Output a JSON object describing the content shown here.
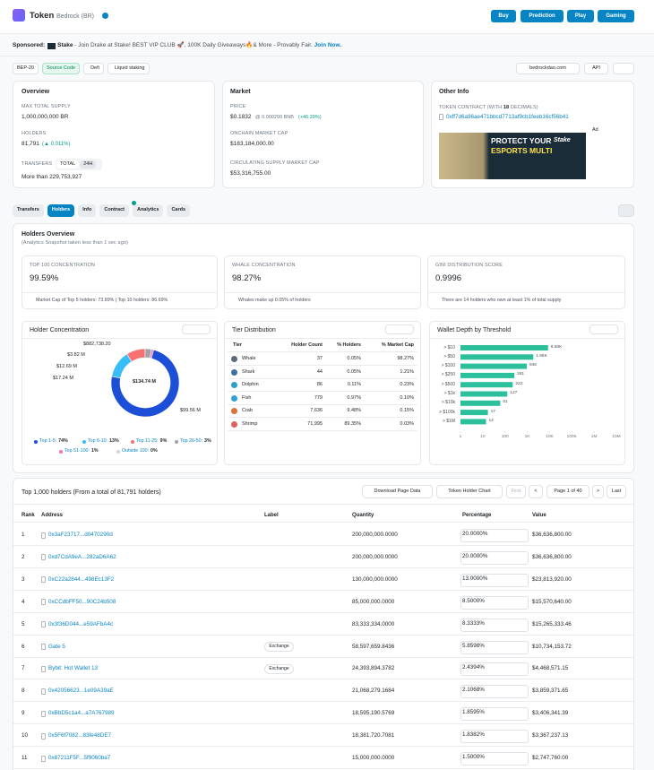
{
  "header": {
    "title": "Token",
    "token_name": "Bedrock (BR)",
    "buttons": [
      "Buy",
      "Prediction",
      "Play",
      "Gaming"
    ]
  },
  "sponsor": {
    "label": "Sponsored:",
    "brand": "Stake",
    "text": " - Join Drake at Stake! BEST VIP CLUB 🚀, 100K Daily Giveaways🔥& More - Provably Fair. ",
    "link": "Join Now."
  },
  "tags": [
    "BEP-20",
    "Source Code",
    "Defi",
    "Liquid staking"
  ],
  "links": {
    "site": "bedrockdao.com",
    "api": "API"
  },
  "overview": {
    "title": "Overview",
    "supply_label": "MAX TOTAL SUPPLY",
    "supply": "1,000,000,000 BR",
    "holders_label": "HOLDERS",
    "holders": "81,791",
    "holders_change": "(▲ 0.011%)",
    "transfers_label": "TRANSFERS",
    "transfer_tabs": [
      "TOTAL",
      "24H"
    ],
    "transfers": "More than 229,753,927"
  },
  "market": {
    "title": "Market",
    "price_label": "PRICE",
    "price": "$0.1832",
    "price_bnb": "@ 0.000299 BNB",
    "price_change": "(+46.20%)",
    "mcap_label": "ONCHAIN MARKET CAP",
    "mcap": "$183,184,000.00",
    "circ_label": "CIRCULATING SUPPLY MARKET CAP",
    "circ": "$53,316,755.00"
  },
  "other_info": {
    "title": "Other Info",
    "contract_label": "TOKEN CONTRACT (WITH ",
    "decimals": "18",
    "contract_label_end": " DECIMALS)",
    "contract": "0xff7d6a96ae471bbcd7713af9cb1feeb16cf56b41",
    "ad_label": "Ad",
    "ad_lines": [
      "PROTECT YOUR",
      "ESPORTS MULTI"
    ],
    "ad_brand": "Stake"
  },
  "tabs": [
    "Transfers",
    "Holders",
    "Info",
    "Contract",
    "Analytics",
    "Cards"
  ],
  "holders_overview": {
    "title": "Holders Overview",
    "subtitle": "(Analytics Snapshot taken less than 1 sec ago)",
    "stats": [
      {
        "label": "TOP 100 CONCENTRATION",
        "value": "99.59%",
        "note": "Market Cap of Top 5 holders: 73.89% | Top 10 holders: 86.69%"
      },
      {
        "label": "WHALE CONCENTRATION",
        "value": "98.27%",
        "note": "Whales make up 0.05% of holders"
      },
      {
        "label": "GINI DISTRIBUTION SCORE",
        "value": "0.9996",
        "note": "There are 14 holders who own at least 1% of total supply"
      }
    ]
  },
  "concentration": {
    "type": "pie",
    "title": "Holder Concentration",
    "callouts": [
      "$882,738.20",
      "$3.82 M",
      "$12.69 M",
      "$17.24 M",
      "$134.74 M",
      "$99.56 M"
    ],
    "series": [
      {
        "name": "Top 1-5:",
        "value": 74,
        "value_label": "74%",
        "color": "#1d4ed8"
      },
      {
        "name": "Top 6-10:",
        "value": 13,
        "value_label": "13%",
        "color": "#38bdf8"
      },
      {
        "name": "Top 11-25:",
        "value": 9,
        "value_label": "9%",
        "color": "#f87171"
      },
      {
        "name": "Top 26-50:",
        "value": 3,
        "value_label": "3%",
        "color": "#a1a1aa"
      },
      {
        "name": "Top 51-100:",
        "value": 1,
        "value_label": "1%",
        "color": "#f472b6"
      },
      {
        "name": "Outside 100:",
        "value": 0,
        "value_label": "0%",
        "color": "#d4d4d8"
      }
    ]
  },
  "tiers": {
    "title": "Tier Distribution",
    "columns": [
      "Tier",
      "Holder Count",
      "% Holders",
      "% Market Cap"
    ],
    "rows": [
      [
        "Whale",
        "37",
        "0.05%",
        "98.27%"
      ],
      [
        "Shark",
        "44",
        "0.05%",
        "1.21%"
      ],
      [
        "Dolphin",
        "86",
        "0.11%",
        "0.23%"
      ],
      [
        "Fish",
        "779",
        "0.97%",
        "0.10%"
      ],
      [
        "Crab",
        "7,636",
        "9.48%",
        "0.15%"
      ],
      [
        "Shrimp",
        "71,995",
        "89.35%",
        "0.03%"
      ]
    ]
  },
  "wallet_depth": {
    "type": "bar",
    "title": "Wallet Depth by Threshold",
    "categories": [
      "> $10",
      "> $50",
      "> $100",
      "> $250",
      "> $500",
      "> $1k",
      "> $10k",
      "> $100k",
      "> $1M"
    ],
    "values": [
      8580,
      1860,
      946,
      261,
      222,
      127,
      61,
      17,
      14
    ],
    "value_labels": [
      "8.58K",
      "1.86K",
      "946",
      "261",
      "222",
      "127",
      "61",
      "17",
      "14"
    ],
    "log_scale": true,
    "xlim": [
      1,
      10000000
    ],
    "xticks": [
      1,
      10,
      100,
      {
        "value": 1000,
        "label": "1K"
      },
      {
        "value": 10000,
        "label": "10K"
      },
      {
        "value": 100000,
        "label": "100K"
      },
      {
        "value": 1000000,
        "label": "1M"
      },
      {
        "value": 10000000,
        "label": "10M"
      }
    ],
    "color": "#2bbf9c"
  },
  "holders_table": {
    "title": "Top 1,000 holders (From a total of 81,791 holders)",
    "buttons": [
      "Download Page Data",
      "Token Holder Chart"
    ],
    "pager": [
      "First",
      "<",
      "Page 1 of 40",
      ">",
      "Last"
    ],
    "columns": [
      "Rank",
      "Address",
      "Label",
      "Quantity",
      "Percentage",
      "Value"
    ],
    "rows": [
      {
        "rank": 1,
        "address": "0x3aF23717...d0470290d",
        "quantity": "200,000,000.0000",
        "percentage": "20.0000%",
        "value": "$36,636,800.00"
      },
      {
        "rank": 2,
        "address": "0xd7CdA9eA...282aD6A62",
        "quantity": "200,000,000.0000",
        "percentage": "20.0000%",
        "value": "$36,636,800.00"
      },
      {
        "rank": 3,
        "address": "0xC22a2844...498Ec13F2",
        "quantity": "130,000,000.0000",
        "percentage": "13.0000%",
        "value": "$23,813,920.00"
      },
      {
        "rank": 4,
        "address": "0xCCdbFF50...90C24b508",
        "quantity": "85,000,000.0000",
        "percentage": "8.5000%",
        "value": "$15,570,640.00"
      },
      {
        "rank": 5,
        "address": "0x3f36D044...e59AFbA4c",
        "quantity": "83,333,334.0000",
        "percentage": "8.3333%",
        "value": "$15,265,333.46"
      },
      {
        "rank": 6,
        "address": "Gate 5",
        "label": "Exchange",
        "quantity": "58,597,659.8436",
        "percentage": "5.8598%",
        "value": "$10,734,153.72"
      },
      {
        "rank": 7,
        "address": "Bybit: Hot Wallet 13",
        "label": "Exchange",
        "quantity": "24,393,894.3782",
        "percentage": "2.4394%",
        "value": "$4,468,571.15"
      },
      {
        "rank": 8,
        "address": "0x42056623...1e09A39aE",
        "quantity": "21,068,279.1684",
        "percentage": "2.1068%",
        "value": "$3,859,371.65"
      },
      {
        "rank": 9,
        "address": "0xBbD5c1a4...a7A767989",
        "quantity": "18,595,190.5769",
        "percentage": "1.8595%",
        "value": "$3,406,341.39"
      },
      {
        "rank": 10,
        "address": "0x5F6f7082...83fe48DE7",
        "quantity": "18,381,720.7081",
        "percentage": "1.8382%",
        "value": "$3,367,237.13"
      },
      {
        "rank": 11,
        "address": "0x87211F5F...5f9060ba7",
        "quantity": "15,000,000.0000",
        "percentage": "1.5000%",
        "value": "$2,747,760.00"
      }
    ]
  }
}
